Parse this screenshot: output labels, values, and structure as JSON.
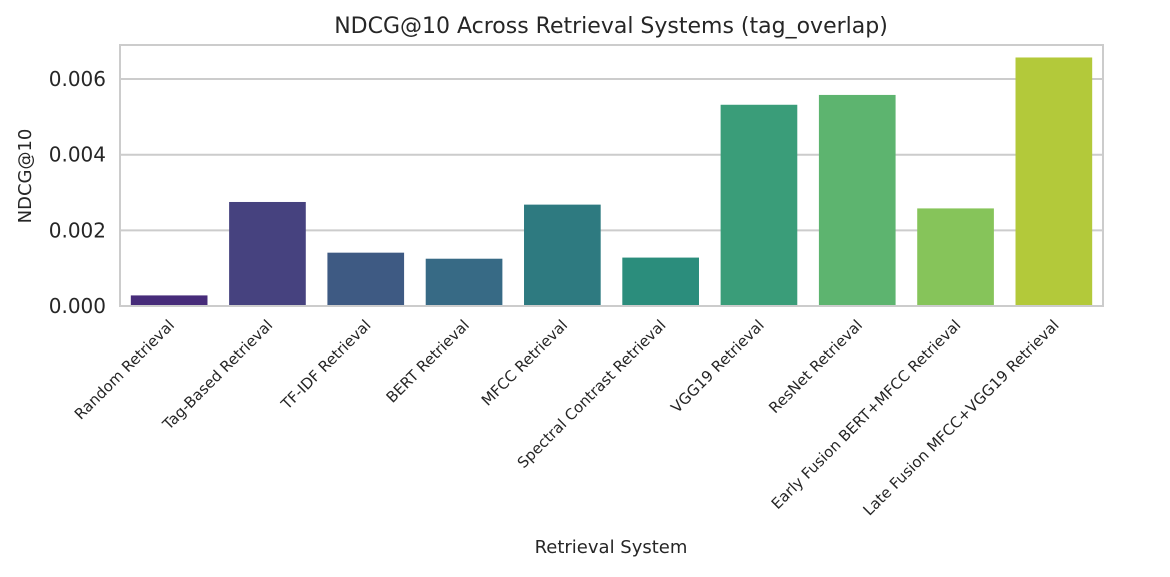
{
  "chart_data": {
    "type": "bar",
    "title": "NDCG@10 Across Retrieval Systems (tag_overlap)",
    "xlabel": "Retrieval System",
    "ylabel": "NDCG@10",
    "ylim": [
      0,
      0.0069
    ],
    "yticks": [
      0,
      0.002,
      0.004,
      0.006
    ],
    "ytick_labels": [
      "0.000",
      "0.002",
      "0.004",
      "0.006"
    ],
    "grid": "horizontal",
    "categories": [
      "Random Retrieval",
      "Tag-Based Retrieval",
      "TF-IDF Retrieval",
      "BERT Retrieval",
      "MFCC Retrieval",
      "Spectral Contrast Retrieval",
      "VGG19 Retrieval",
      "ResNet Retrieval",
      "Early Fusion BERT+MFCC Retrieval",
      "Late Fusion MFCC+VGG19 Retrieval"
    ],
    "values": [
      0.00028,
      0.00275,
      0.00141,
      0.00125,
      0.00268,
      0.00128,
      0.00532,
      0.00558,
      0.00258,
      0.00657
    ],
    "colors": [
      "#472c7a",
      "#46427f",
      "#3e5a83",
      "#376a85",
      "#2e7a80",
      "#2b8d7c",
      "#3a9d79",
      "#5db46f",
      "#86c45a",
      "#b3c93a"
    ]
  }
}
